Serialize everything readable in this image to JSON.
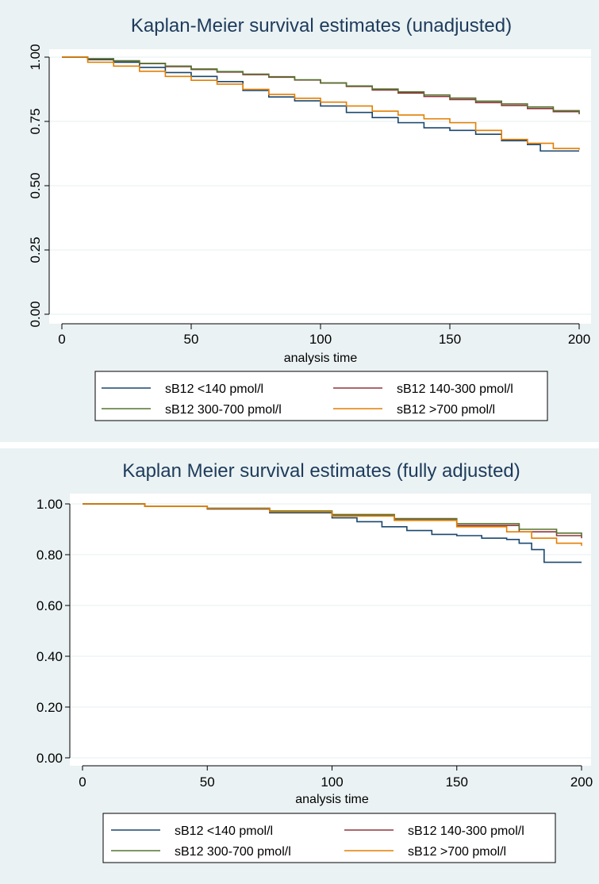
{
  "chart_data": [
    {
      "type": "line",
      "title": "Kaplan-Meier survival estimates (unadjusted)",
      "xlabel": "analysis time",
      "ylabel": "",
      "xlim": [
        0,
        200
      ],
      "ylim": [
        0,
        1
      ],
      "xticks": [
        "0",
        "50",
        "100",
        "150",
        "200"
      ],
      "yticks": [
        "0.00",
        "0.25",
        "0.50",
        "0.75",
        "1.00"
      ],
      "y_tick_rotation": "vertical",
      "grid": true,
      "legend_position": "bottom",
      "step": true,
      "series": [
        {
          "name": "sB12 <140 pmol/l",
          "color": "#1a476f",
          "x": [
            0,
            10,
            20,
            30,
            40,
            50,
            60,
            70,
            80,
            90,
            100,
            110,
            120,
            130,
            140,
            150,
            160,
            170,
            180,
            185,
            190,
            200
          ],
          "y": [
            1.0,
            0.99,
            0.98,
            0.96,
            0.94,
            0.925,
            0.905,
            0.87,
            0.845,
            0.83,
            0.81,
            0.785,
            0.765,
            0.745,
            0.725,
            0.715,
            0.7,
            0.675,
            0.66,
            0.635,
            0.635,
            0.635
          ]
        },
        {
          "name": "sB12 140-300 pmol/l",
          "color": "#90353b",
          "x": [
            0,
            10,
            20,
            30,
            40,
            50,
            60,
            70,
            80,
            90,
            100,
            110,
            120,
            130,
            140,
            150,
            160,
            170,
            180,
            190,
            200
          ],
          "y": [
            1.0,
            0.993,
            0.985,
            0.975,
            0.963,
            0.952,
            0.942,
            0.932,
            0.922,
            0.911,
            0.899,
            0.886,
            0.872,
            0.86,
            0.847,
            0.835,
            0.823,
            0.812,
            0.8,
            0.788,
            0.778
          ]
        },
        {
          "name": "sB12 300-700 pmol/l",
          "color": "#55752f",
          "x": [
            0,
            10,
            20,
            30,
            40,
            50,
            60,
            70,
            80,
            90,
            100,
            110,
            120,
            130,
            140,
            150,
            160,
            170,
            180,
            190,
            200
          ],
          "y": [
            1.0,
            0.994,
            0.986,
            0.976,
            0.965,
            0.954,
            0.944,
            0.934,
            0.924,
            0.912,
            0.9,
            0.888,
            0.876,
            0.865,
            0.853,
            0.841,
            0.829,
            0.818,
            0.806,
            0.792,
            0.78
          ]
        },
        {
          "name": "sB12 >700 pmol/l",
          "color": "#e37e00",
          "x": [
            0,
            10,
            20,
            30,
            40,
            50,
            60,
            70,
            80,
            90,
            100,
            110,
            120,
            130,
            140,
            150,
            160,
            170,
            180,
            190,
            200
          ],
          "y": [
            1.0,
            0.98,
            0.965,
            0.945,
            0.925,
            0.91,
            0.895,
            0.875,
            0.855,
            0.84,
            0.825,
            0.81,
            0.79,
            0.775,
            0.76,
            0.745,
            0.715,
            0.68,
            0.665,
            0.645,
            0.64
          ]
        }
      ]
    },
    {
      "type": "line",
      "title": "Kaplan Meier survival estimates (fully adjusted)",
      "xlabel": "analysis time",
      "ylabel": "",
      "xlim": [
        0,
        200
      ],
      "ylim": [
        0,
        1
      ],
      "xticks": [
        "0",
        "50",
        "100",
        "150",
        "200"
      ],
      "yticks": [
        "0.00",
        "0.20",
        "0.40",
        "0.60",
        "0.80",
        "1.00"
      ],
      "y_tick_rotation": "horizontal",
      "grid": true,
      "legend_position": "bottom",
      "step": true,
      "series": [
        {
          "name": "sB12 <140 pmol/l",
          "color": "#1a476f",
          "x": [
            0,
            25,
            50,
            75,
            100,
            110,
            120,
            130,
            140,
            150,
            160,
            170,
            175,
            180,
            185,
            190,
            200
          ],
          "y": [
            1.0,
            0.99,
            0.98,
            0.965,
            0.945,
            0.93,
            0.91,
            0.895,
            0.88,
            0.875,
            0.865,
            0.86,
            0.845,
            0.82,
            0.77,
            0.77,
            0.77
          ]
        },
        {
          "name": "sB12 140-300 pmol/l",
          "color": "#90353b",
          "x": [
            0,
            25,
            50,
            75,
            100,
            125,
            150,
            175,
            190,
            200
          ],
          "y": [
            1.0,
            0.99,
            0.982,
            0.97,
            0.955,
            0.937,
            0.915,
            0.89,
            0.875,
            0.865
          ]
        },
        {
          "name": "sB12 300-700 pmol/l",
          "color": "#55752f",
          "x": [
            0,
            25,
            50,
            75,
            100,
            125,
            150,
            175,
            190,
            200
          ],
          "y": [
            1.0,
            0.99,
            0.983,
            0.972,
            0.958,
            0.942,
            0.922,
            0.9,
            0.885,
            0.873
          ]
        },
        {
          "name": "sB12 >700 pmol/l",
          "color": "#e37e00",
          "x": [
            0,
            25,
            50,
            75,
            100,
            125,
            150,
            170,
            180,
            190,
            200
          ],
          "y": [
            1.0,
            0.99,
            0.982,
            0.969,
            0.952,
            0.935,
            0.91,
            0.89,
            0.865,
            0.845,
            0.835
          ]
        }
      ]
    }
  ]
}
